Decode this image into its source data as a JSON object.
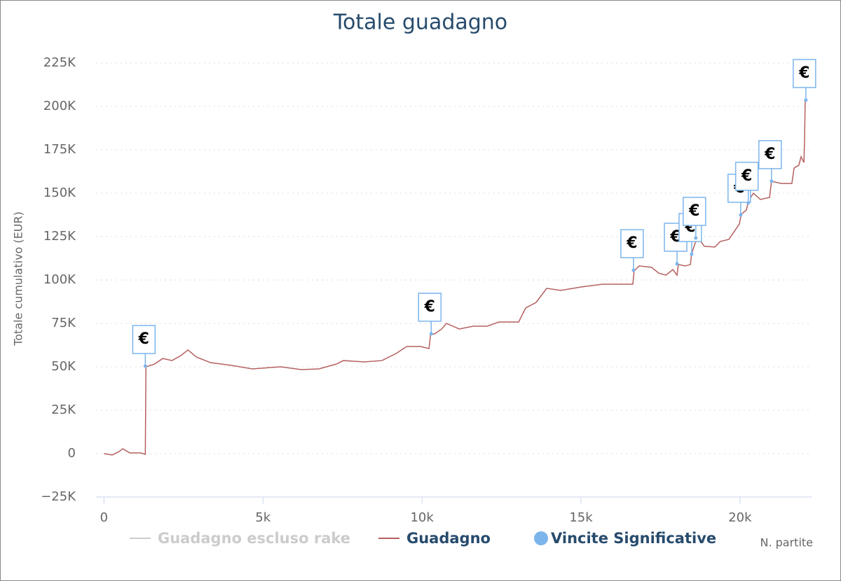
{
  "chart_data": {
    "type": "line",
    "title": "Totale guadagno",
    "y_label": "Totale cumulativo (EUR)",
    "x_label": "N. partite",
    "xlim": [
      -250,
      22250
    ],
    "ylim": [
      -25000,
      225000
    ],
    "xticks": [
      0,
      {
        "value": 5000,
        "label": "5k"
      },
      {
        "value": 10000,
        "label": "10k"
      },
      {
        "value": 15000,
        "label": "15k"
      },
      {
        "value": 20000,
        "label": "20k"
      }
    ],
    "yticks": [
      {
        "value": -25000,
        "label": "−25K"
      },
      0,
      {
        "value": 25000,
        "label": "25K"
      },
      {
        "value": 50000,
        "label": "50K"
      },
      {
        "value": 75000,
        "label": "75K"
      },
      {
        "value": 100000,
        "label": "100K"
      },
      {
        "value": 125000,
        "label": "125K"
      },
      {
        "value": 150000,
        "label": "150K"
      },
      {
        "value": 175000,
        "label": "175K"
      },
      {
        "value": 200000,
        "label": "200K"
      },
      {
        "value": 225000,
        "label": "225K"
      }
    ],
    "grid": true,
    "flag_label": "€",
    "series": [
      {
        "name": "Guadagno escluso rake",
        "color": "#cccccc",
        "visible": false
      },
      {
        "name": "Guadagno",
        "color": "#b5605f",
        "x": [
          0,
          260,
          480,
          590,
          810,
          1150,
          1300,
          1320,
          1590,
          1850,
          2140,
          2420,
          2640,
          2910,
          3350,
          4010,
          4670,
          5550,
          6210,
          6760,
          7310,
          7530,
          8190,
          8740,
          9190,
          9520,
          9960,
          10220,
          10270,
          10400,
          10620,
          10770,
          11170,
          11610,
          12050,
          12420,
          13040,
          13260,
          13590,
          13920,
          14360,
          15020,
          15680,
          16630,
          16670,
          16830,
          17220,
          17440,
          17670,
          17890,
          18020,
          18060,
          18280,
          18440,
          18480,
          18660,
          18880,
          19210,
          19380,
          19650,
          19980,
          20040,
          20200,
          20260,
          20420,
          20640,
          20930,
          20990,
          21300,
          21630,
          21700,
          21850,
          21920,
          22010,
          22030,
          22050
        ],
        "values": [
          0,
          -800,
          1200,
          2800,
          400,
          400,
          -400,
          50000,
          51600,
          54800,
          53600,
          56500,
          59700,
          55600,
          52400,
          50800,
          48800,
          50000,
          48400,
          48800,
          51600,
          53600,
          52800,
          53600,
          57700,
          61700,
          61700,
          60500,
          68500,
          69000,
          71800,
          75000,
          71800,
          73400,
          73400,
          75800,
          75800,
          83900,
          87100,
          95200,
          94000,
          96000,
          97600,
          97600,
          105200,
          108100,
          107300,
          104000,
          102800,
          106000,
          102800,
          108900,
          108100,
          108900,
          115300,
          125000,
          119400,
          119000,
          122200,
          123400,
          132300,
          137900,
          140300,
          145200,
          150000,
          146400,
          147600,
          156900,
          155600,
          155600,
          164500,
          166100,
          171000,
          167700,
          180600,
          203600
        ]
      },
      {
        "name": "Vincite Significative",
        "color": "#7cb5ec",
        "x": [
          1300,
          10290,
          16650,
          18020,
          18480,
          18610,
          20020,
          20260,
          20990,
          22070
        ],
        "values": [
          50400,
          69000,
          105600,
          109300,
          114900,
          124200,
          137500,
          144400,
          156900,
          203600
        ]
      }
    ]
  }
}
